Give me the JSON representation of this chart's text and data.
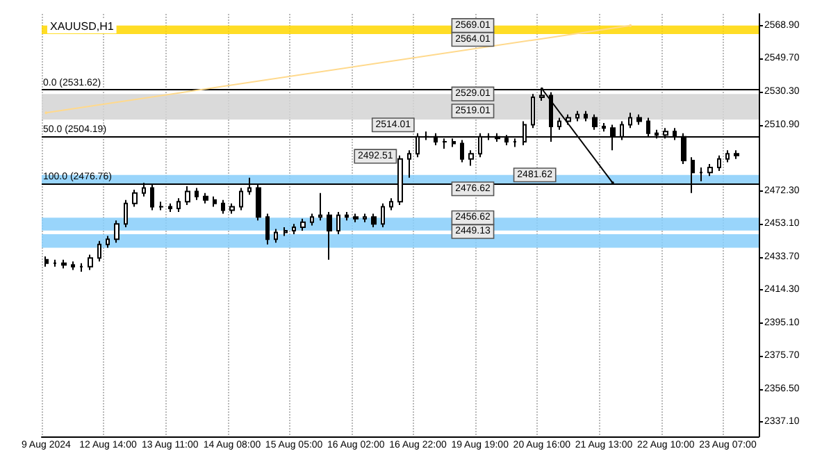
{
  "chart_data": {
    "type": "candlestick",
    "title": "XAUUSD,H1",
    "categories": [
      "9 Aug 2024",
      null,
      null,
      null,
      null,
      null,
      null,
      "12 Aug 14:00",
      null,
      null,
      null,
      null,
      null,
      null,
      "13 Aug 11:00",
      null,
      null,
      null,
      null,
      null,
      null,
      "14 Aug 08:00",
      null,
      null,
      null,
      null,
      null,
      null,
      "15 Aug 05:00",
      null,
      null,
      null,
      null,
      null,
      null,
      "16 Aug 02:00",
      null,
      null,
      null,
      null,
      null,
      null,
      "16 Aug 22:00",
      null,
      null,
      null,
      null,
      null,
      null,
      "19 Aug 19:00",
      null,
      null,
      null,
      null,
      null,
      null,
      "20 Aug 16:00",
      null,
      null,
      null,
      null,
      null,
      null,
      "21 Aug 13:00",
      null,
      null,
      null,
      null,
      null,
      null,
      "22 Aug 10:00",
      null,
      null,
      null,
      null,
      null,
      null,
      "23 Aug 07:00",
      null,
      null,
      null
    ],
    "ohlc": [
      [
        2432,
        2434,
        2428,
        2430
      ],
      [
        2430,
        2432,
        2428,
        2430
      ],
      [
        2430,
        2432,
        2427,
        2429
      ],
      [
        2429,
        2431,
        2426,
        2428
      ],
      [
        2428,
        2430,
        2425,
        2428
      ],
      [
        2428,
        2435,
        2426,
        2433
      ],
      [
        2433,
        2443,
        2431,
        2441
      ],
      [
        2441,
        2446,
        2439,
        2444
      ],
      [
        2444,
        2455,
        2442,
        2453
      ],
      [
        2453,
        2467,
        2451,
        2465
      ],
      [
        2465,
        2473,
        2463,
        2471
      ],
      [
        2471,
        2477,
        2469,
        2474
      ],
      [
        2474,
        2476,
        2461,
        2463
      ],
      [
        2463,
        2466,
        2461,
        2463
      ],
      [
        2463,
        2465,
        2460,
        2462
      ],
      [
        2462,
        2468,
        2460,
        2466
      ],
      [
        2466,
        2475,
        2464,
        2472
      ],
      [
        2472,
        2474,
        2467,
        2469
      ],
      [
        2469,
        2471,
        2465,
        2467
      ],
      [
        2467,
        2469,
        2463,
        2465
      ],
      [
        2465,
        2467,
        2459,
        2461
      ],
      [
        2461,
        2465,
        2459,
        2463
      ],
      [
        2463,
        2474,
        2461,
        2472
      ],
      [
        2472,
        2480,
        2470,
        2474
      ],
      [
        2474,
        2476,
        2455,
        2457
      ],
      [
        2457,
        2459,
        2441,
        2444
      ],
      [
        2444,
        2450,
        2442,
        2448
      ],
      [
        2448,
        2451,
        2446,
        2449
      ],
      [
        2449,
        2453,
        2447,
        2451
      ],
      [
        2451,
        2456,
        2449,
        2454
      ],
      [
        2454,
        2459,
        2452,
        2457
      ],
      [
        2457,
        2471,
        2455,
        2458
      ],
      [
        2458,
        2460,
        2432,
        2449
      ],
      [
        2449,
        2460,
        2447,
        2458
      ],
      [
        2458,
        2460,
        2455,
        2457
      ],
      [
        2457,
        2459,
        2454,
        2456
      ],
      [
        2456,
        2459,
        2454,
        2457
      ],
      [
        2457,
        2459,
        2451,
        2453
      ],
      [
        2453,
        2465,
        2451,
        2463
      ],
      [
        2463,
        2468,
        2461,
        2466
      ],
      [
        2466,
        2493,
        2464,
        2491
      ],
      [
        2491,
        2496,
        2480,
        2494
      ],
      [
        2494,
        2506,
        2492,
        2504
      ],
      [
        2504,
        2507,
        2502,
        2504
      ],
      [
        2504,
        2506,
        2499,
        2501
      ],
      [
        2501,
        2503,
        2497,
        2501
      ],
      [
        2501,
        2503,
        2498,
        2500
      ],
      [
        2500,
        2502,
        2489,
        2491
      ],
      [
        2491,
        2496,
        2487,
        2494
      ],
      [
        2494,
        2506,
        2492,
        2504
      ],
      [
        2504,
        2506,
        2502,
        2504
      ],
      [
        2504,
        2506,
        2501,
        2503
      ],
      [
        2503,
        2505,
        2499,
        2501
      ],
      [
        2501,
        2503,
        2498,
        2501
      ],
      [
        2501,
        2513,
        2499,
        2511
      ],
      [
        2511,
        2529,
        2509,
        2527
      ],
      [
        2527,
        2532,
        2525,
        2528
      ],
      [
        2528,
        2530,
        2501,
        2510
      ],
      [
        2510,
        2515,
        2508,
        2513
      ],
      [
        2513,
        2517,
        2511,
        2515
      ],
      [
        2515,
        2519,
        2513,
        2517
      ],
      [
        2517,
        2519,
        2513,
        2515
      ],
      [
        2515,
        2517,
        2508,
        2510
      ],
      [
        2510,
        2512,
        2507,
        2509
      ],
      [
        2509,
        2511,
        2496,
        2504
      ],
      [
        2504,
        2513,
        2502,
        2511
      ],
      [
        2511,
        2518,
        2509,
        2515
      ],
      [
        2515,
        2517,
        2511,
        2513
      ],
      [
        2513,
        2515,
        2504,
        2506
      ],
      [
        2506,
        2508,
        2503,
        2505
      ],
      [
        2505,
        2509,
        2503,
        2507
      ],
      [
        2507,
        2509,
        2502,
        2504
      ],
      [
        2504,
        2506,
        2488,
        2490
      ],
      [
        2490,
        2492,
        2471,
        2483
      ],
      [
        2483,
        2486,
        2478,
        2483
      ],
      [
        2483,
        2488,
        2481,
        2486
      ],
      [
        2486,
        2493,
        2484,
        2491
      ],
      [
        2491,
        2496,
        2489,
        2494
      ],
      [
        2494,
        2496,
        2491,
        2493
      ],
      null,
      null
    ],
    "series": [
      {
        "type": "line",
        "color": "#000000",
        "values": [
          null,
          null,
          null,
          null,
          null,
          null,
          null,
          null,
          null,
          null,
          null,
          null,
          null,
          null,
          null,
          null,
          null,
          null,
          null,
          null,
          null,
          null,
          null,
          null,
          null,
          null,
          null,
          null,
          null,
          null,
          null,
          null,
          null,
          null,
          null,
          null,
          null,
          null,
          null,
          null,
          null,
          null,
          null,
          null,
          null,
          null,
          null,
          null,
          null,
          null,
          null,
          null,
          null,
          null,
          null,
          null,
          2532,
          null,
          null,
          null,
          null,
          null,
          null,
          null,
          2477,
          null,
          null,
          null,
          null,
          null,
          null,
          null,
          null,
          null,
          null,
          null,
          null,
          null,
          null,
          null,
          null
        ]
      },
      {
        "type": "line",
        "color": "#ffd98c",
        "values": [
          2518,
          null,
          null,
          null,
          null,
          null,
          null,
          null,
          null,
          null,
          null,
          null,
          null,
          null,
          null,
          null,
          null,
          null,
          null,
          null,
          null,
          null,
          null,
          null,
          null,
          null,
          null,
          null,
          null,
          null,
          null,
          null,
          null,
          null,
          null,
          null,
          null,
          null,
          null,
          null,
          null,
          null,
          null,
          null,
          null,
          null,
          null,
          null,
          null,
          null,
          null,
          null,
          null,
          null,
          null,
          null,
          null,
          null,
          null,
          null,
          null,
          null,
          null,
          null,
          null,
          null,
          2569,
          null,
          null,
          null,
          null,
          null,
          null,
          null,
          null,
          null,
          null,
          null,
          null,
          null,
          null
        ]
      }
    ],
    "ylim": [
      2328.7,
      2575.8
    ],
    "yticks": [
      {
        "value": 2568.9,
        "label": "2568.90"
      },
      {
        "value": 2549.7,
        "label": "2549.70"
      },
      {
        "value": 2530.3,
        "label": "2530.30"
      },
      {
        "value": 2510.9,
        "label": "2510.90"
      },
      {
        "value": 2472.3,
        "label": "2472.30"
      },
      {
        "value": 2453.1,
        "label": "2453.10"
      },
      {
        "value": 2433.7,
        "label": "2433.70"
      },
      {
        "value": 2414.3,
        "label": "2414.30"
      },
      {
        "value": 2395.1,
        "label": "2395.10"
      },
      {
        "value": 2375.7,
        "label": "2375.70"
      },
      {
        "value": 2356.5,
        "label": "2356.50"
      },
      {
        "value": 2337.1,
        "label": "2337.10"
      }
    ],
    "bands": [
      {
        "axis": "y",
        "from": 2514.01,
        "to": 2529.01,
        "color": "#d3d3d3"
      },
      {
        "axis": "y",
        "from": 2476.62,
        "to": 2481.62,
        "color": "#87cefa"
      },
      {
        "axis": "y",
        "from": 2449.13,
        "to": 2456.62,
        "color": "#87cefa"
      },
      {
        "axis": "y",
        "from": 2439,
        "to": 2447,
        "color": "#87cefa"
      },
      {
        "axis": "y",
        "from": 2564.01,
        "to": 2569.01,
        "color": "#ffd700"
      }
    ],
    "ref_lines": [
      {
        "axis": "y",
        "value": 2531.62,
        "label": "0.0 (2531.62)",
        "color": "#000000"
      },
      {
        "axis": "y",
        "value": 2504.19,
        "label": "50.0 (2504.19)",
        "color": "#000000"
      },
      {
        "axis": "y",
        "value": 2476.76,
        "label": "100.0 (2476.76)",
        "color": "#000000"
      }
    ],
    "annotations": [
      {
        "text": "2569.01",
        "y": 2569.01
      },
      {
        "text": "2564.01",
        "y": 2564.01
      },
      {
        "text": "2529.01",
        "y": 2529.01
      },
      {
        "text": "2519.01",
        "y": 2519.01
      },
      {
        "text": "2514.01",
        "y": 2514.01
      },
      {
        "text": "2481.62",
        "y": 2481.62
      },
      {
        "text": "2476.62",
        "y": 2476.62
      },
      {
        "text": "2456.62",
        "y": 2456.62
      },
      {
        "text": "2449.13",
        "y": 2449.13
      },
      {
        "text": "2492.51",
        "y": 2492.51
      }
    ],
    "grid": "x"
  }
}
